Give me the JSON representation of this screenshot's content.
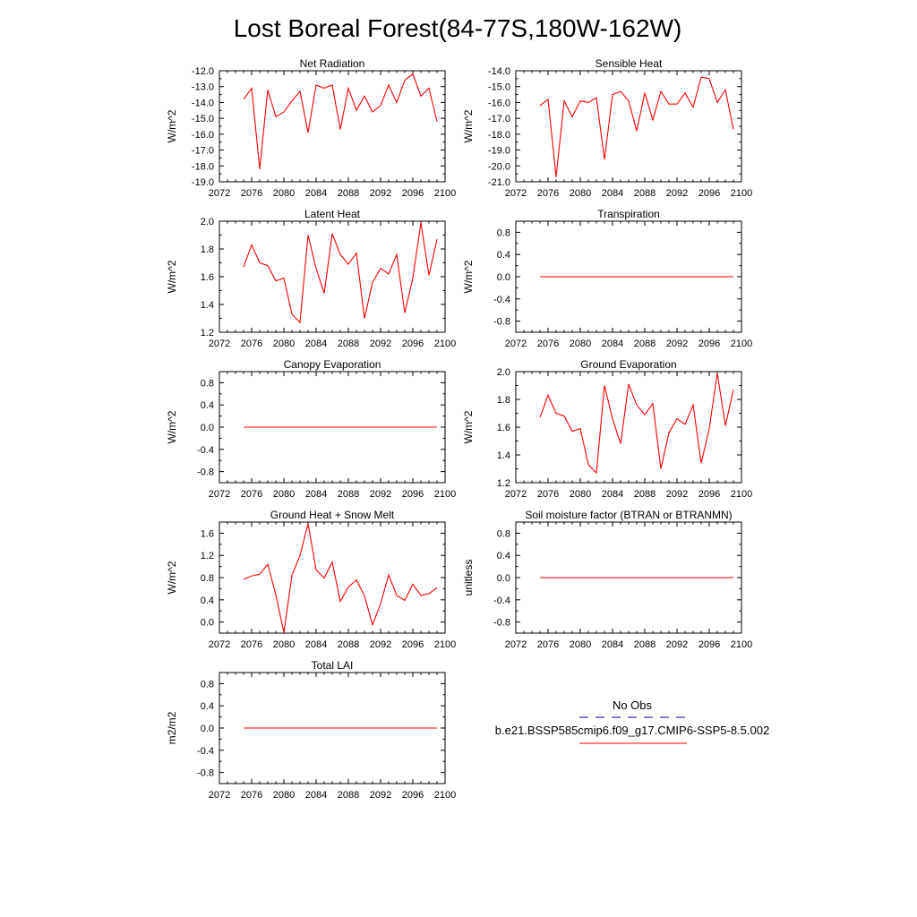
{
  "title": "Lost Boreal Forest(84-77S,180W-162W)",
  "colors": {
    "model": "#ff0000",
    "obs": "#0000aa",
    "axis": "#000000"
  },
  "x_ticks": [
    "2072",
    "2076",
    "2080",
    "2084",
    "2088",
    "2092",
    "2096",
    "2100"
  ],
  "legend": {
    "obs_label": "No Obs",
    "model_label": "b.e21.BSSP585cmip6.f09_g17.CMIP6-SSP5-8.5.002"
  },
  "chart_data": [
    {
      "type": "line",
      "title": "Net Radiation",
      "ylabel": "W/m^2",
      "xlim": [
        2072,
        2100
      ],
      "ylim": [
        -19.0,
        -12.0
      ],
      "yticks": [
        "-19.0",
        "-18.0",
        "-17.0",
        "-16.0",
        "-15.0",
        "-14.0",
        "-13.0",
        "-12.0"
      ],
      "x": [
        2075,
        2076,
        2077,
        2078,
        2079,
        2080,
        2081,
        2082,
        2083,
        2084,
        2085,
        2086,
        2087,
        2088,
        2089,
        2090,
        2091,
        2092,
        2093,
        2094,
        2095,
        2096,
        2097,
        2098,
        2099
      ],
      "values": [
        -13.8,
        -13.1,
        -18.2,
        -13.2,
        -14.9,
        -14.6,
        -13.9,
        -13.3,
        -15.9,
        -12.9,
        -13.1,
        -12.9,
        -15.7,
        -13.1,
        -14.5,
        -13.6,
        -14.6,
        -14.2,
        -12.9,
        -14.0,
        -12.6,
        -12.2,
        -13.6,
        -13.1,
        -15.2
      ]
    },
    {
      "type": "line",
      "title": "Sensible Heat",
      "ylabel": "W/m^2",
      "xlim": [
        2072,
        2100
      ],
      "ylim": [
        -21.0,
        -14.0
      ],
      "yticks": [
        "-21.0",
        "-20.0",
        "-19.0",
        "-18.0",
        "-17.0",
        "-16.0",
        "-15.0",
        "-14.0"
      ],
      "x": [
        2075,
        2076,
        2077,
        2078,
        2079,
        2080,
        2081,
        2082,
        2083,
        2084,
        2085,
        2086,
        2087,
        2088,
        2089,
        2090,
        2091,
        2092,
        2093,
        2094,
        2095,
        2096,
        2097,
        2098,
        2099
      ],
      "values": [
        -16.2,
        -15.8,
        -20.7,
        -15.9,
        -16.9,
        -15.9,
        -16.0,
        -15.7,
        -19.6,
        -15.5,
        -15.3,
        -15.9,
        -17.8,
        -15.4,
        -17.1,
        -15.3,
        -16.1,
        -16.1,
        -15.4,
        -16.3,
        -14.4,
        -14.5,
        -16.0,
        -15.2,
        -17.7
      ]
    },
    {
      "type": "line",
      "title": "Latent Heat",
      "ylabel": "W/m^2",
      "xlim": [
        2072,
        2100
      ],
      "ylim": [
        1.2,
        2.0
      ],
      "yticks": [
        "1.2",
        "1.4",
        "1.6",
        "1.8",
        "2.0"
      ],
      "x": [
        2075,
        2076,
        2077,
        2078,
        2079,
        2080,
        2081,
        2082,
        2083,
        2084,
        2085,
        2086,
        2087,
        2088,
        2089,
        2090,
        2091,
        2092,
        2093,
        2094,
        2095,
        2096,
        2097,
        2098,
        2099
      ],
      "values": [
        1.67,
        1.83,
        1.7,
        1.68,
        1.57,
        1.59,
        1.33,
        1.27,
        1.9,
        1.66,
        1.48,
        1.91,
        1.76,
        1.69,
        1.77,
        1.3,
        1.56,
        1.66,
        1.62,
        1.76,
        1.34,
        1.59,
        1.99,
        1.61,
        1.87
      ]
    },
    {
      "type": "line",
      "title": "Transpiration",
      "ylabel": "W/m^2",
      "xlim": [
        2072,
        2100
      ],
      "ylim": [
        -1.0,
        1.0
      ],
      "yticks": [
        "-0.8",
        "-0.4",
        "0.0",
        "0.4",
        "0.8"
      ],
      "x": [
        2075,
        2099
      ],
      "values": [
        0.0,
        0.0
      ]
    },
    {
      "type": "line",
      "title": "Canopy Evaporation",
      "ylabel": "W/m^2",
      "xlim": [
        2072,
        2100
      ],
      "ylim": [
        -1.0,
        1.0
      ],
      "yticks": [
        "-0.8",
        "-0.4",
        "0.0",
        "0.4",
        "0.8"
      ],
      "x": [
        2075,
        2099
      ],
      "values": [
        0.0,
        0.0
      ]
    },
    {
      "type": "line",
      "title": "Ground Evaporation",
      "ylabel": "W/m^2",
      "xlim": [
        2072,
        2100
      ],
      "ylim": [
        1.2,
        2.0
      ],
      "yticks": [
        "1.2",
        "1.4",
        "1.6",
        "1.8",
        "2.0"
      ],
      "x": [
        2075,
        2076,
        2077,
        2078,
        2079,
        2080,
        2081,
        2082,
        2083,
        2084,
        2085,
        2086,
        2087,
        2088,
        2089,
        2090,
        2091,
        2092,
        2093,
        2094,
        2095,
        2096,
        2097,
        2098,
        2099
      ],
      "values": [
        1.67,
        1.83,
        1.7,
        1.68,
        1.57,
        1.59,
        1.33,
        1.27,
        1.9,
        1.66,
        1.48,
        1.91,
        1.76,
        1.69,
        1.77,
        1.3,
        1.56,
        1.66,
        1.62,
        1.76,
        1.34,
        1.59,
        1.99,
        1.61,
        1.87
      ]
    },
    {
      "type": "line",
      "title": "Ground Heat + Snow Melt",
      "ylabel": "W/m^2",
      "xlim": [
        2072,
        2100
      ],
      "ylim": [
        -0.2,
        1.8
      ],
      "yticks": [
        "0.0",
        "0.4",
        "0.8",
        "1.2",
        "1.6"
      ],
      "x": [
        2075,
        2076,
        2077,
        2078,
        2079,
        2080,
        2081,
        2082,
        2083,
        2084,
        2085,
        2086,
        2087,
        2088,
        2089,
        2090,
        2091,
        2092,
        2093,
        2094,
        2095,
        2096,
        2097,
        2098,
        2099
      ],
      "values": [
        0.77,
        0.83,
        0.86,
        1.04,
        0.49,
        -0.19,
        0.84,
        1.2,
        1.77,
        0.94,
        0.79,
        1.08,
        0.37,
        0.63,
        0.76,
        0.47,
        -0.05,
        0.33,
        0.85,
        0.48,
        0.39,
        0.68,
        0.48,
        0.51,
        0.62
      ]
    },
    {
      "type": "line",
      "title": "Soil moisture factor (BTRAN or BTRANMN)",
      "ylabel": "unitless",
      "xlim": [
        2072,
        2100
      ],
      "ylim": [
        -1.0,
        1.0
      ],
      "yticks": [
        "-0.8",
        "-0.4",
        "0.0",
        "0.4",
        "0.8"
      ],
      "x": [
        2075,
        2099
      ],
      "values": [
        0.0,
        0.0
      ]
    },
    {
      "type": "line",
      "title": "Total LAI",
      "ylabel": "m2/m2",
      "xlim": [
        2072,
        2100
      ],
      "ylim": [
        -1.0,
        1.0
      ],
      "yticks": [
        "-0.8",
        "-0.4",
        "0.0",
        "0.4",
        "0.8"
      ],
      "x": [
        2075,
        2099
      ],
      "values": [
        0.0,
        0.0
      ]
    }
  ]
}
